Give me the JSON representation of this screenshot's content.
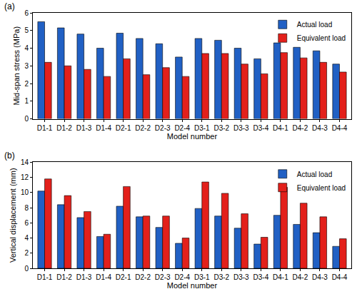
{
  "chart_data": [
    {
      "type": "bar",
      "annotations": [
        "(a)"
      ],
      "x_label": "Model number",
      "y_label": "Mid-span stress (MPa)",
      "categories": [
        "D1-1",
        "D1-2",
        "D1-3",
        "D1-4",
        "D2-1",
        "D2-2",
        "D2-3",
        "D2-4",
        "D3-1",
        "D3-2",
        "D3-3",
        "D3-4",
        "D4-1",
        "D4-2",
        "D4-3",
        "D4-4"
      ],
      "series": [
        {
          "name": "Actual load",
          "color": "#2160c4",
          "values": [
            5.5,
            5.15,
            4.8,
            4.0,
            4.85,
            4.55,
            4.25,
            3.5,
            4.55,
            4.45,
            4.0,
            3.4,
            4.3,
            4.05,
            3.85,
            3.1
          ]
        },
        {
          "name": "Equivalent load",
          "color": "#e3201b",
          "values": [
            3.2,
            3.0,
            2.8,
            2.4,
            3.4,
            2.5,
            2.9,
            2.4,
            3.7,
            3.7,
            3.1,
            2.55,
            3.75,
            3.45,
            3.2,
            2.65
          ]
        }
      ],
      "ylim": [
        0,
        6
      ],
      "yticks": [
        0,
        1,
        2,
        3,
        4,
        5,
        6
      ],
      "legend": "top right"
    },
    {
      "type": "bar",
      "annotations": [
        "(b)"
      ],
      "x_label": "Model number",
      "y_label": "Vertical displacement (mm)",
      "categories": [
        "D1-1",
        "D1-2",
        "D1-3",
        "D1-4",
        "D2-1",
        "D2-2",
        "D2-3",
        "D2-4",
        "D3-1",
        "D3-2",
        "D3-3",
        "D3-4",
        "D4-1",
        "D4-2",
        "D4-3",
        "D4-4"
      ],
      "series": [
        {
          "name": "Actual load",
          "color": "#2160c4",
          "values": [
            10.2,
            8.4,
            6.7,
            4.2,
            8.2,
            6.8,
            5.4,
            3.3,
            7.9,
            6.9,
            5.3,
            3.2,
            7.0,
            5.8,
            4.7,
            2.9
          ]
        },
        {
          "name": "Equivalent load",
          "color": "#e3201b",
          "values": [
            11.8,
            9.6,
            7.5,
            4.5,
            10.8,
            6.9,
            6.9,
            4.0,
            11.4,
            9.9,
            7.2,
            4.1,
            10.7,
            8.6,
            6.8,
            3.9
          ]
        }
      ],
      "ylim": [
        0,
        14
      ],
      "yticks": [
        0,
        2,
        4,
        6,
        8,
        10,
        12,
        14
      ],
      "legend": "top right"
    }
  ]
}
